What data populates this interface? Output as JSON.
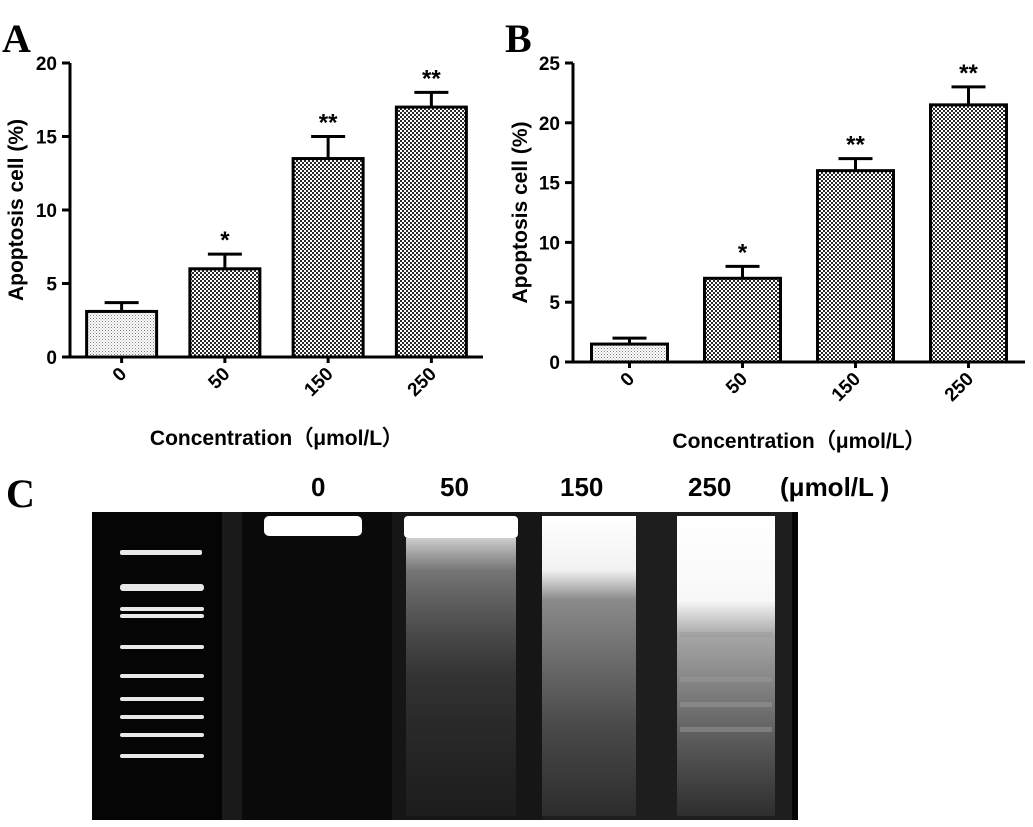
{
  "chart_data": [
    {
      "type": "bar",
      "panel": "A",
      "categories": [
        "0",
        "50",
        "150",
        "250"
      ],
      "values": [
        3.1,
        6.0,
        13.5,
        17.0
      ],
      "errors": [
        0.6,
        1.0,
        1.5,
        1.0
      ],
      "significance": [
        "",
        "*",
        "**",
        "**"
      ],
      "ylabel": "Apoptosis cell (%)",
      "xlabel": "Concentration（μmol/L）",
      "ylim": [
        0,
        20
      ],
      "yticks": [
        0,
        5,
        10,
        15,
        20
      ],
      "colors": {
        "bar0": "#e6e6e6",
        "bars": "#a9a9a9",
        "edge": "#000000"
      }
    },
    {
      "type": "bar",
      "panel": "B",
      "categories": [
        "0",
        "50",
        "150",
        "250"
      ],
      "values": [
        1.5,
        7.0,
        16.0,
        21.5
      ],
      "errors": [
        0.5,
        1.0,
        1.0,
        1.5
      ],
      "significance": [
        "",
        "*",
        "**",
        "**"
      ],
      "ylabel": "Apoptosis cell (%)",
      "xlabel": "Concentration（μmol/L）",
      "ylim": [
        0,
        25
      ],
      "yticks": [
        0,
        5,
        10,
        15,
        20,
        25
      ],
      "colors": {
        "bar0": "#e6e6e6",
        "bars": "#a9a9a9",
        "edge": "#000000"
      }
    }
  ],
  "panel_c": {
    "letter": "C",
    "lanes": [
      "0",
      "50",
      "150",
      "250"
    ],
    "unit": "(μmol/L )"
  }
}
